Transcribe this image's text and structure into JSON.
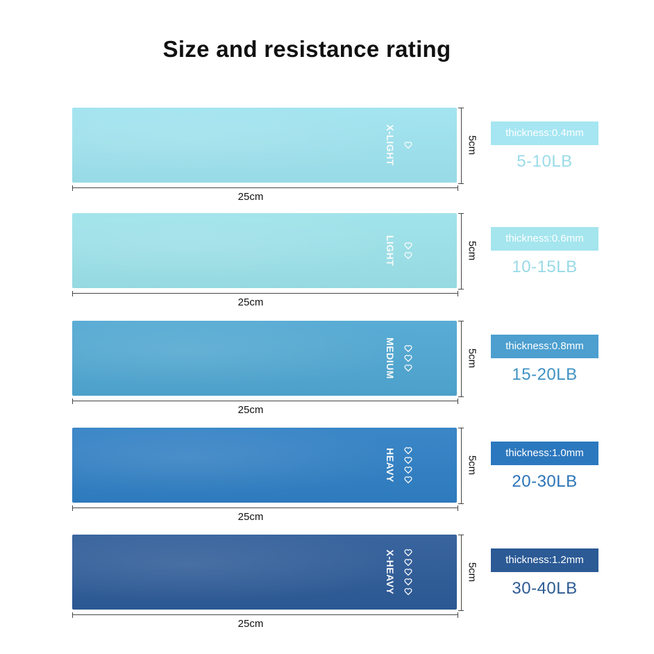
{
  "title": "Size and resistance rating",
  "bands": [
    {
      "level": "X-LIGHT",
      "hearts": 1,
      "width": "25cm",
      "height": "5cm",
      "thickness": "thickness:0.4mm",
      "resistance": "5-10LB",
      "band_color": "#9ee3ef",
      "tag_color": "#a5e6f2",
      "text_color": "#9adbe9"
    },
    {
      "level": "LIGHT",
      "hearts": 2,
      "width": "25cm",
      "height": "5cm",
      "thickness": "thickness:0.6mm",
      "resistance": "10-15LB",
      "band_color": "#9ce2ea",
      "tag_color": "#a4e5ee",
      "text_color": "#98d9e6"
    },
    {
      "level": "MEDIUM",
      "hearts": 3,
      "width": "25cm",
      "height": "5cm",
      "thickness": "thickness:0.8mm",
      "resistance": "15-20LB",
      "band_color": "#4fa7d2",
      "tag_color": "#4c9fcf",
      "text_color": "#3f92c2"
    },
    {
      "level": "HEAVY",
      "hearts": 4,
      "width": "25cm",
      "height": "5cm",
      "thickness": "thickness:1.0mm",
      "resistance": "20-30LB",
      "band_color": "#2f7fc4",
      "tag_color": "#2c78be",
      "text_color": "#2b74b8"
    },
    {
      "level": "X-HEAVY",
      "hearts": 5,
      "width": "25cm",
      "height": "5cm",
      "thickness": "thickness:1.2mm",
      "resistance": "30-40LB",
      "band_color": "#2d5b98",
      "tag_color": "#2b5a95",
      "text_color": "#2d5b93"
    }
  ]
}
